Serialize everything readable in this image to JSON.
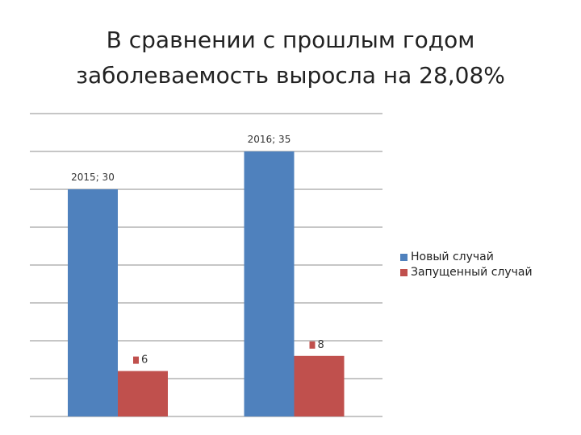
{
  "slide": {
    "title_line1": "В сравнении с прошлым годом",
    "title_line2": "заболеваемость выросла на 28,08%"
  },
  "chart_data": {
    "type": "bar",
    "categories": [
      "2015",
      "2016"
    ],
    "series": [
      {
        "name": "Новый случай",
        "values": [
          30,
          35
        ],
        "color": "#4F81BD",
        "data_labels": [
          "2015; 30",
          "2016; 35"
        ]
      },
      {
        "name": "Запущенный случай",
        "values": [
          6,
          8
        ],
        "color": "#C0504D",
        "data_labels": [
          "6",
          "8"
        ]
      }
    ],
    "ylim": [
      0,
      40
    ],
    "gridlines": true,
    "y_tick_labels_shown": false,
    "x_tick_labels_shown": false,
    "legend_position": "right"
  }
}
